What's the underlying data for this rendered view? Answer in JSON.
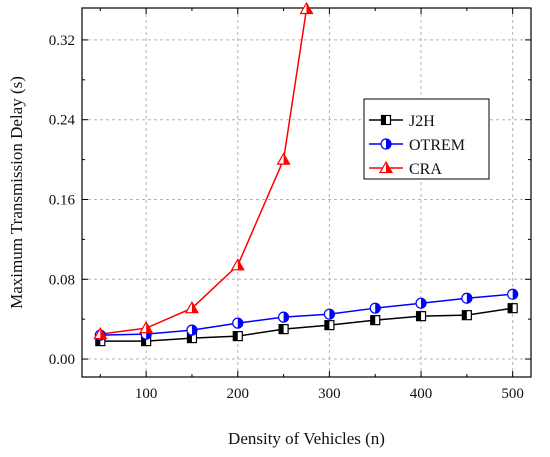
{
  "chart_data": {
    "type": "line",
    "title": "",
    "xlabel": "Density of Vehicles (n)",
    "ylabel": "Maximum Transmission Delay (s)",
    "xlim": [
      30,
      520
    ],
    "ylim": [
      -0.018,
      0.352
    ],
    "xticks": [
      100,
      200,
      300,
      400,
      500
    ],
    "xtick_labels": [
      "100",
      "200",
      "300",
      "400",
      "500"
    ],
    "yticks": [
      0.0,
      0.08,
      0.16,
      0.24,
      0.32
    ],
    "ytick_labels": [
      "0.00",
      "0.08",
      "0.16",
      "0.24",
      "0.32"
    ],
    "grid": true,
    "legend_position": "upper-right",
    "series": [
      {
        "name": "J2H",
        "color": "#000000",
        "marker": "half-filled-square",
        "x": [
          50,
          100,
          150,
          200,
          250,
          300,
          350,
          400,
          450,
          500
        ],
        "values": [
          0.018,
          0.018,
          0.021,
          0.023,
          0.03,
          0.034,
          0.039,
          0.043,
          0.044,
          0.051
        ]
      },
      {
        "name": "OTREM",
        "color": "#0000ff",
        "marker": "half-filled-circle",
        "x": [
          50,
          100,
          150,
          200,
          250,
          300,
          350,
          400,
          450,
          500
        ],
        "values": [
          0.024,
          0.025,
          0.029,
          0.036,
          0.042,
          0.045,
          0.051,
          0.056,
          0.061,
          0.065
        ]
      },
      {
        "name": "CRA",
        "color": "#ff0000",
        "marker": "half-filled-triangle",
        "x": [
          50,
          100,
          150,
          200,
          250,
          275
        ],
        "values": [
          0.025,
          0.031,
          0.051,
          0.094,
          0.2,
          0.351
        ]
      }
    ]
  }
}
